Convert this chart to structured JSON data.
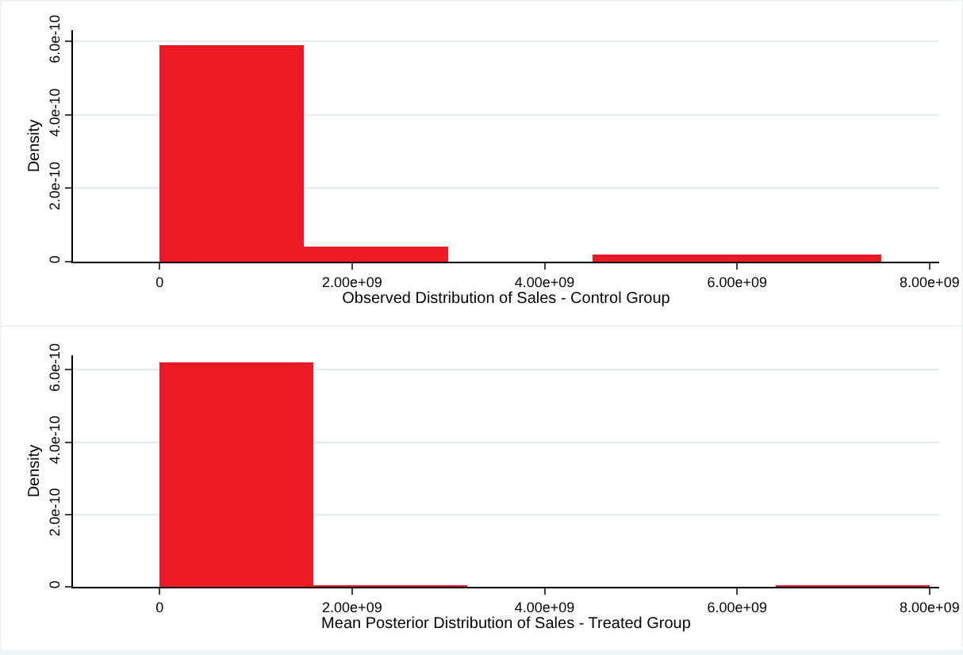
{
  "chart_data": [
    {
      "type": "histogram",
      "xlabel": "Observed Distribution of Sales - Control Group",
      "ylabel": "Density",
      "color": "#ed1c24",
      "bins": [
        0,
        1500000000.0,
        3000000000.0,
        4500000000.0,
        6000000000.0,
        7500000000.0
      ],
      "values": [
        5.9e-10,
        4e-11,
        0,
        2e-11,
        2e-11
      ],
      "xlim": [
        -900000000.0,
        8100000000.0
      ],
      "ylim": [
        0,
        6.3e-10
      ],
      "xticks": [
        0,
        {
          "value": 2000000000.0,
          "label": "2.00e+09"
        },
        {
          "value": 4000000000.0,
          "label": "4.00e+09"
        },
        {
          "value": 6000000000.0,
          "label": "6.00e+09"
        },
        {
          "value": 8000000000.0,
          "label": "8.00e+09"
        }
      ],
      "yticks": [
        0,
        {
          "value": 2e-10,
          "label": "2.0e-10"
        },
        {
          "value": 4e-10,
          "label": "4.0e-10"
        },
        {
          "value": 6e-10,
          "label": "6.0e-10"
        }
      ],
      "grid": "y"
    },
    {
      "type": "histogram",
      "xlabel": "Mean Posterior Distribution of Sales - Treated Group",
      "ylabel": "Density",
      "color": "#ed1c24",
      "bins": [
        0,
        1600000000.0,
        3200000000.0,
        4800000000.0,
        6400000000.0,
        8000000000.0
      ],
      "values": [
        6.2e-10,
        5e-12,
        0,
        0,
        5e-12
      ],
      "xlim": [
        -900000000.0,
        8100000000.0
      ],
      "ylim": [
        0,
        6.4e-10
      ],
      "xticks": [
        0,
        {
          "value": 2000000000.0,
          "label": "2.00e+09"
        },
        {
          "value": 4000000000.0,
          "label": "4.00e+09"
        },
        {
          "value": 6000000000.0,
          "label": "6.00e+09"
        },
        {
          "value": 8000000000.0,
          "label": "8.00e+09"
        }
      ],
      "yticks": [
        0,
        {
          "value": 2e-10,
          "label": "2.0e-10"
        },
        {
          "value": 4e-10,
          "label": "4.0e-10"
        },
        {
          "value": 6e-10,
          "label": "6.0e-10"
        }
      ],
      "grid": "y"
    }
  ]
}
